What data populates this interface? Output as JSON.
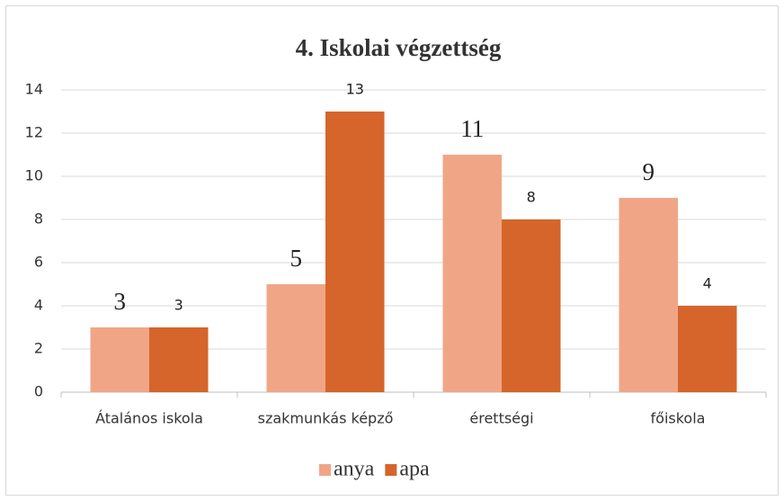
{
  "chart_data": {
    "type": "bar",
    "title": "4. Iskolai végzettség",
    "categories": [
      "Átalános iskola",
      "szakmunkás képző",
      "érettségi",
      "főiskola"
    ],
    "series": [
      {
        "name": "anya",
        "color": "#f0a686",
        "values": [
          3,
          5,
          11,
          9
        ]
      },
      {
        "name": "apa",
        "color": "#d5652a",
        "values": [
          3,
          13,
          8,
          4
        ]
      }
    ],
    "ylim": [
      0,
      14
    ],
    "yticks": [
      0,
      2,
      4,
      6,
      8,
      10,
      12,
      14
    ],
    "grid": true,
    "legend": "bottom"
  }
}
